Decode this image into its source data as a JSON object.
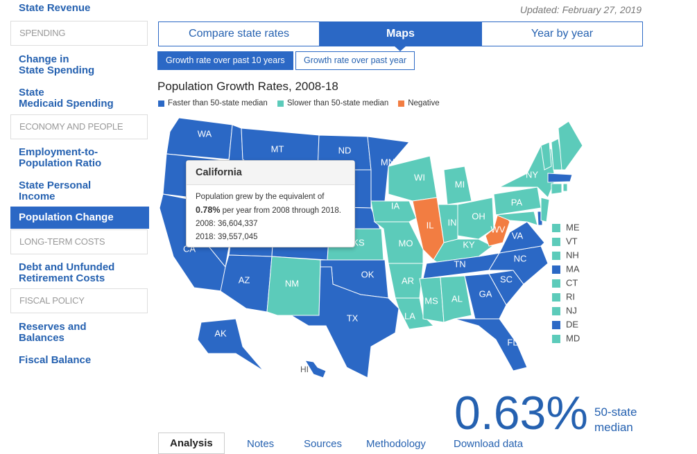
{
  "sidebar": {
    "top_link": "Federal Share of\nState Revenue",
    "items": [
      {
        "kind": "header",
        "text": "SPENDING"
      },
      {
        "kind": "link",
        "text": "Change in\nState Spending"
      },
      {
        "kind": "link",
        "text": "State\nMedicaid Spending"
      },
      {
        "kind": "header",
        "text": "ECONOMY AND PEOPLE"
      },
      {
        "kind": "link",
        "text": "Employment-to-\nPopulation Ratio"
      },
      {
        "kind": "link",
        "text": "State Personal\nIncome"
      },
      {
        "kind": "active",
        "text": "Population Change"
      },
      {
        "kind": "header",
        "text": "LONG-TERM COSTS"
      },
      {
        "kind": "link",
        "text": "Debt and Unfunded\nRetirement Costs"
      },
      {
        "kind": "header",
        "text": "FISCAL POLICY"
      },
      {
        "kind": "link",
        "text": "Reserves and\nBalances"
      },
      {
        "kind": "link",
        "text": "Fiscal Balance"
      }
    ]
  },
  "updated": "Updated: February 27, 2019",
  "tabs": [
    "Compare state rates",
    "Maps",
    "Year by year"
  ],
  "active_tab": 1,
  "subtabs": [
    "Growth rate over past 10 years",
    "Growth rate over past year"
  ],
  "active_subtab": 0,
  "map": {
    "title": "Population Growth Rates, 2008-18",
    "legend": [
      {
        "label": "Faster than 50-state median",
        "color": "#2b68c5"
      },
      {
        "label": "Slower than 50-state median",
        "color": "#5ccbba"
      },
      {
        "label": "Negative",
        "color": "#f27d42"
      }
    ],
    "states": [
      {
        "label": "WA",
        "group": 0
      },
      {
        "group": 0
      },
      {
        "label": "CA",
        "group": 0
      },
      {
        "group": 0
      },
      {
        "group": 0
      },
      {
        "label": "MT",
        "group": 0
      },
      {
        "group": 0
      },
      {
        "group": 0
      },
      {
        "group": 0
      },
      {
        "label": "AZ",
        "group": 0
      },
      {
        "label": "NM",
        "group": 1
      },
      {
        "label": "ND",
        "group": 0
      },
      {
        "group": 0
      },
      {
        "group": 0
      },
      {
        "label": "KS",
        "group": 1
      },
      {
        "label": "OK",
        "group": 0
      },
      {
        "label": "TX",
        "group": 0
      },
      {
        "label": "MN",
        "group": 0
      },
      {
        "label": "IA",
        "group": 1
      },
      {
        "label": "MO",
        "group": 1
      },
      {
        "label": "AR",
        "group": 1
      },
      {
        "label": "LA",
        "group": 1
      },
      {
        "label": "WI",
        "group": 1
      },
      {
        "label": "IL",
        "group": 2
      },
      {
        "label": "MI",
        "group": 1
      },
      {
        "label": "IN",
        "group": 1
      },
      {
        "label": "OH",
        "group": 1
      },
      {
        "label": "KY",
        "group": 1
      },
      {
        "label": "TN",
        "group": 0
      },
      {
        "label": "MS",
        "group": 1
      },
      {
        "label": "AL",
        "group": 1
      },
      {
        "label": "GA",
        "group": 0
      },
      {
        "label": "FL",
        "group": 0
      },
      {
        "label": "SC",
        "group": 0
      },
      {
        "label": "NC",
        "group": 0
      },
      {
        "label": "VA",
        "group": 0
      },
      {
        "label": "WV",
        "group": 2
      },
      {
        "label": "PA",
        "group": 1
      },
      {
        "label": "NY",
        "group": 1
      },
      {
        "group": 1
      },
      {
        "group": 0
      },
      {
        "group": 1
      },
      {
        "group": 1
      },
      {
        "group": 1
      },
      {
        "group": 1
      },
      {
        "group": 0
      },
      {
        "group": 1
      },
      {
        "group": 1
      },
      {
        "label": "AK",
        "group": 0
      },
      {
        "label": "HI",
        "group": 0
      }
    ],
    "small_states": [
      {
        "label": "ME",
        "group": 1
      },
      {
        "label": "VT",
        "group": 1
      },
      {
        "label": "NH",
        "group": 1
      },
      {
        "label": "MA",
        "group": 0
      },
      {
        "label": "CT",
        "group": 1
      },
      {
        "label": "RI",
        "group": 1
      },
      {
        "label": "NJ",
        "group": 1
      },
      {
        "label": "DE",
        "group": 0
      },
      {
        "label": "MD",
        "group": 1
      }
    ],
    "tooltip": {
      "title": "California",
      "text_before": "Population grew by the equivalent of",
      "highlight": "0.78%",
      "text_after": "per year from 2008 through 2018.",
      "line_2008": "2008: 36,604,337",
      "line_2018": "2018: 39,557,045"
    }
  },
  "median": {
    "value_text": "0.63%",
    "label": "50-state\nmedian"
  },
  "bottom_tabs": [
    "Analysis",
    "Notes",
    "Sources",
    "Methodology",
    "Download data"
  ]
}
